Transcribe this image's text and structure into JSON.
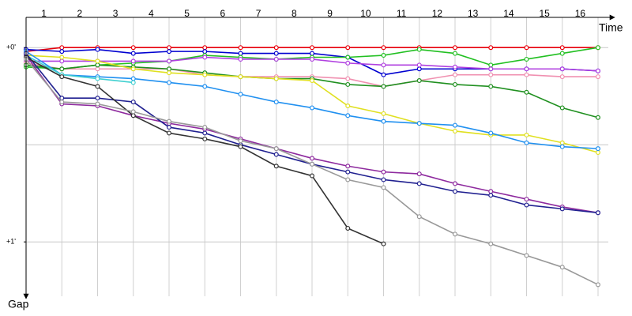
{
  "chart_data": {
    "type": "line",
    "x_label": "Time",
    "y_label": "Gap",
    "x": [
      0,
      1,
      2,
      3,
      4,
      5,
      6,
      7,
      8,
      9,
      10,
      11,
      12,
      13,
      14,
      15,
      16
    ],
    "xlim": [
      0,
      16
    ],
    "xticks": [
      {
        "value": 0.5,
        "label": "1"
      },
      {
        "value": 1.5,
        "label": "2"
      },
      {
        "value": 2.5,
        "label": "3"
      },
      {
        "value": 3.5,
        "label": "4"
      },
      {
        "value": 4.5,
        "label": "5"
      },
      {
        "value": 5.5,
        "label": "6"
      },
      {
        "value": 6.5,
        "label": "7"
      },
      {
        "value": 7.5,
        "label": "8"
      },
      {
        "value": 8.5,
        "label": "9"
      },
      {
        "value": 9.5,
        "label": "10"
      },
      {
        "value": 10.5,
        "label": "11"
      },
      {
        "value": 11.5,
        "label": "12"
      },
      {
        "value": 12.5,
        "label": "13"
      },
      {
        "value": 13.5,
        "label": "14"
      },
      {
        "value": 14.5,
        "label": "15"
      },
      {
        "value": 15.5,
        "label": "16"
      }
    ],
    "ylim": [
      -0.2,
      1.3
    ],
    "y_inverted": true,
    "yticks": [
      {
        "value": 0,
        "label": "+0'"
      },
      {
        "value": 1,
        "label": "+1'"
      }
    ],
    "ygrid": [
      0,
      0.5,
      1
    ],
    "xgrid": true,
    "series": [
      {
        "color": "#e8000b",
        "values": [
          0.02,
          0,
          0,
          0,
          0,
          0,
          0,
          0,
          0,
          0,
          0,
          0,
          0,
          0,
          0,
          0,
          0
        ]
      },
      {
        "color": "#0000d0",
        "values": [
          0.01,
          0.02,
          0.01,
          0.03,
          0.02,
          0.02,
          0.03,
          0.03,
          0.03,
          0.05,
          0.14,
          0.11,
          0.11,
          0.11,
          0.11,
          0.11,
          0.12
        ]
      },
      {
        "color": "#22c022",
        "values": [
          0.1,
          0.11,
          0.09,
          0.08,
          0.07,
          0.04,
          0.05,
          0.06,
          0.05,
          0.05,
          0.04,
          0.01,
          0.03,
          0.09,
          0.06,
          0.03,
          0.0
        ]
      },
      {
        "color": "#b040e0",
        "values": [
          0.07,
          0.07,
          0.07,
          0.07,
          0.07,
          0.05,
          0.06,
          0.06,
          0.06,
          0.08,
          0.09,
          0.09,
          0.1,
          0.11,
          0.11,
          0.11,
          0.12
        ]
      },
      {
        "color": "#f090b0",
        "values": [
          0.08,
          0.11,
          0.11,
          0.11,
          0.11,
          0.14,
          0.15,
          0.15,
          0.15,
          0.16,
          0.2,
          0.17,
          0.14,
          0.14,
          0.14,
          0.15,
          0.15
        ]
      },
      {
        "color": "#209020",
        "values": [
          0.09,
          0.11,
          0.09,
          0.1,
          0.11,
          0.13,
          0.15,
          0.16,
          0.16,
          0.19,
          0.2,
          0.17,
          0.19,
          0.2,
          0.23,
          0.31,
          0.36
        ]
      },
      {
        "color": "#e0e020",
        "values": [
          0.04,
          0.05,
          0.07,
          0.11,
          0.13,
          0.14,
          0.15,
          0.16,
          0.17,
          0.3,
          0.34,
          0.39,
          0.43,
          0.45,
          0.45,
          0.49,
          0.54
        ]
      },
      {
        "color": "#2090f0",
        "values": [
          0.02,
          0.14,
          0.15,
          0.16,
          0.18,
          0.2,
          0.24,
          0.28,
          0.31,
          0.35,
          0.38,
          0.39,
          0.4,
          0.44,
          0.49,
          0.51,
          0.52
        ]
      },
      {
        "color": "#40d0d0",
        "values": [
          0.04,
          0.14,
          0.16,
          0.18,
          null,
          null,
          null,
          null,
          null,
          null,
          null,
          null,
          null,
          null,
          null,
          null,
          null
        ]
      },
      {
        "color": "#8e2a9e",
        "values": [
          0.04,
          0.29,
          0.3,
          0.35,
          0.39,
          0.42,
          0.47,
          0.52,
          0.57,
          0.61,
          0.64,
          0.65,
          0.7,
          0.74,
          0.78,
          0.82,
          0.85
        ]
      },
      {
        "color": "#202090",
        "values": [
          0.03,
          0.26,
          0.26,
          0.28,
          0.41,
          0.44,
          0.5,
          0.55,
          0.6,
          0.64,
          0.68,
          0.7,
          0.74,
          0.76,
          0.81,
          0.83,
          0.85
        ]
      },
      {
        "color": "#333333",
        "values": [
          0.05,
          0.15,
          0.2,
          0.35,
          0.44,
          0.47,
          0.51,
          0.61,
          0.66,
          0.93,
          1.01,
          null,
          null,
          null,
          null,
          null,
          null
        ]
      },
      {
        "color": "#999999",
        "values": [
          0.06,
          0.28,
          0.29,
          0.33,
          0.38,
          0.41,
          0.48,
          0.52,
          0.6,
          0.68,
          0.72,
          0.87,
          0.96,
          1.01,
          1.07,
          1.13,
          1.22
        ]
      }
    ]
  }
}
